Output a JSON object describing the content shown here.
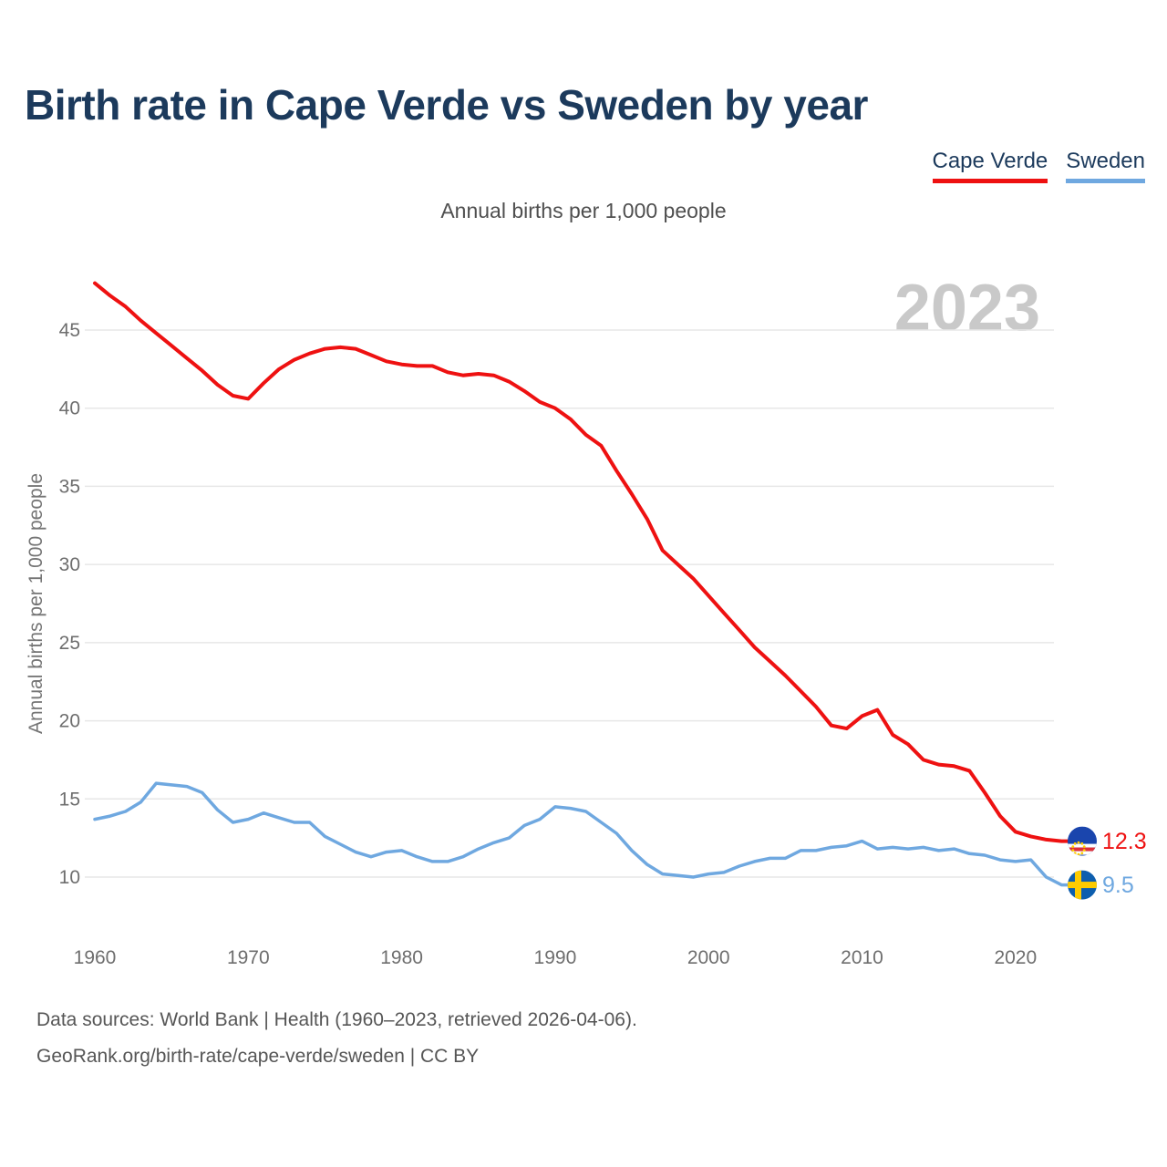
{
  "header": {
    "title": "Birth rate in Cape Verde vs Sweden by year"
  },
  "legend": [
    {
      "label": "Cape Verde",
      "color": "#ee1111"
    },
    {
      "label": "Sweden",
      "color": "#6fa8e0"
    }
  ],
  "subtitle": "Annual births per 1,000 people",
  "watermark": "2023",
  "footer": {
    "line1": "Data sources: World Bank | Health (1960–2023, retrieved 2026-04-06).",
    "line2": "GeoRank.org/birth-rate/cape-verde/sweden | CC BY"
  },
  "colors": {
    "title": "#1c3a5c",
    "cape_verde": "#ee1111",
    "sweden": "#6fa8e0",
    "grid": "#e7e7e7",
    "tick_text": "#6e6e6e",
    "axis_label": "#757575",
    "watermark": "#c9c9c9",
    "footer_text": "#565656"
  },
  "chart_data": {
    "type": "line",
    "title": "Birth rate in Cape Verde vs Sweden by year",
    "subtitle": "Annual births per 1,000 people",
    "xlabel": "",
    "ylabel": "Annual births per 1,000 people",
    "grid": "horizontal",
    "legend_position": "top-right",
    "watermark": "2023",
    "x_ticks": [
      1960,
      1970,
      1980,
      1990,
      2000,
      2010,
      2020
    ],
    "y_ticks": [
      10,
      15,
      20,
      25,
      30,
      35,
      40,
      45
    ],
    "xlim": [
      1960,
      2023
    ],
    "ylim": [
      8,
      49
    ],
    "x": [
      1960,
      1961,
      1962,
      1963,
      1964,
      1965,
      1966,
      1967,
      1968,
      1969,
      1970,
      1971,
      1972,
      1973,
      1974,
      1975,
      1976,
      1977,
      1978,
      1979,
      1980,
      1981,
      1982,
      1983,
      1984,
      1985,
      1986,
      1987,
      1988,
      1989,
      1990,
      1991,
      1992,
      1993,
      1994,
      1995,
      1996,
      1997,
      1998,
      1999,
      2000,
      2001,
      2002,
      2003,
      2004,
      2005,
      2006,
      2007,
      2008,
      2009,
      2010,
      2011,
      2012,
      2013,
      2014,
      2015,
      2016,
      2017,
      2018,
      2019,
      2020,
      2021,
      2022,
      2023
    ],
    "series": [
      {
        "name": "Cape Verde",
        "color": "#ee1111",
        "end_label": "12.3",
        "flag": "cape-verde",
        "values": [
          48.0,
          47.2,
          46.5,
          45.6,
          44.8,
          44.0,
          43.2,
          42.4,
          41.5,
          40.8,
          40.6,
          41.6,
          42.5,
          43.1,
          43.5,
          43.8,
          43.9,
          43.8,
          43.4,
          43.0,
          42.8,
          42.7,
          42.7,
          42.3,
          42.1,
          42.2,
          42.1,
          41.7,
          41.1,
          40.4,
          40.0,
          39.3,
          38.3,
          37.6,
          36.0,
          34.5,
          32.9,
          30.9,
          30.0,
          29.1,
          28.0,
          26.9,
          25.8,
          24.7,
          23.8,
          22.9,
          21.9,
          20.9,
          19.7,
          19.5,
          20.3,
          20.7,
          19.1,
          18.5,
          17.5,
          17.2,
          17.1,
          16.8,
          15.4,
          13.9,
          12.9,
          12.6,
          12.4,
          12.3
        ]
      },
      {
        "name": "Sweden",
        "color": "#6fa8e0",
        "end_label": "9.5",
        "flag": "sweden",
        "values": [
          13.7,
          13.9,
          14.2,
          14.8,
          16.0,
          15.9,
          15.8,
          15.4,
          14.3,
          13.5,
          13.7,
          14.1,
          13.8,
          13.5,
          13.5,
          12.6,
          12.1,
          11.6,
          11.3,
          11.6,
          11.7,
          11.3,
          11.0,
          11.0,
          11.3,
          11.8,
          12.2,
          12.5,
          13.3,
          13.7,
          14.5,
          14.4,
          14.2,
          13.5,
          12.8,
          11.7,
          10.8,
          10.2,
          10.1,
          10.0,
          10.2,
          10.3,
          10.7,
          11.0,
          11.2,
          11.2,
          11.7,
          11.7,
          11.9,
          12.0,
          12.3,
          11.8,
          11.9,
          11.8,
          11.9,
          11.7,
          11.8,
          11.5,
          11.4,
          11.1,
          11.0,
          11.1,
          10.0,
          9.5
        ]
      }
    ]
  }
}
